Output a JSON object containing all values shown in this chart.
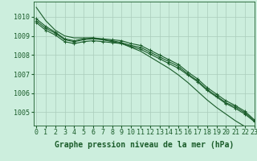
{
  "xlabel": "Graphe pression niveau de la mer (hPa)",
  "background_color": "#cceedd",
  "grid_color": "#aaccbb",
  "line_color": "#1a5c2a",
  "xlim": [
    -0.3,
    23
  ],
  "ylim": [
    1004.3,
    1010.8
  ],
  "yticks": [
    1005,
    1006,
    1007,
    1008,
    1009,
    1010
  ],
  "xticks": [
    0,
    1,
    2,
    3,
    4,
    5,
    6,
    7,
    8,
    9,
    10,
    11,
    12,
    13,
    14,
    15,
    16,
    17,
    18,
    19,
    20,
    21,
    22,
    23
  ],
  "series_with_markers": [
    [
      1009.9,
      1009.5,
      1009.2,
      1008.85,
      1008.75,
      1008.85,
      1008.9,
      1008.85,
      1008.8,
      1008.75,
      1008.6,
      1008.5,
      1008.25,
      1008.0,
      1007.75,
      1007.5,
      1007.1,
      1006.75,
      1006.3,
      1005.95,
      1005.6,
      1005.35,
      1005.05,
      1004.6
    ],
    [
      1009.7,
      1009.3,
      1009.05,
      1008.7,
      1008.6,
      1008.7,
      1008.75,
      1008.7,
      1008.65,
      1008.6,
      1008.45,
      1008.3,
      1008.05,
      1007.8,
      1007.55,
      1007.3,
      1006.95,
      1006.6,
      1006.15,
      1005.8,
      1005.45,
      1005.2,
      1004.9,
      1004.5
    ],
    [
      1009.8,
      1009.4,
      1009.15,
      1008.8,
      1008.7,
      1008.8,
      1008.85,
      1008.8,
      1008.75,
      1008.65,
      1008.5,
      1008.4,
      1008.15,
      1007.9,
      1007.65,
      1007.4,
      1007.0,
      1006.65,
      1006.2,
      1005.85,
      1005.5,
      1005.28,
      1004.97,
      1004.55
    ]
  ],
  "series_no_markers": [
    [
      1010.5,
      1009.8,
      1009.3,
      1009.0,
      1008.9,
      1008.9,
      1008.9,
      1008.8,
      1008.7,
      1008.6,
      1008.4,
      1008.2,
      1007.9,
      1007.6,
      1007.3,
      1006.95,
      1006.55,
      1006.1,
      1005.65,
      1005.25,
      1004.9,
      1004.55,
      1004.25,
      1004.0
    ]
  ],
  "marker": "+",
  "markersize": 3,
  "linewidth": 0.8,
  "xlabel_fontsize": 7,
  "tick_fontsize": 6
}
